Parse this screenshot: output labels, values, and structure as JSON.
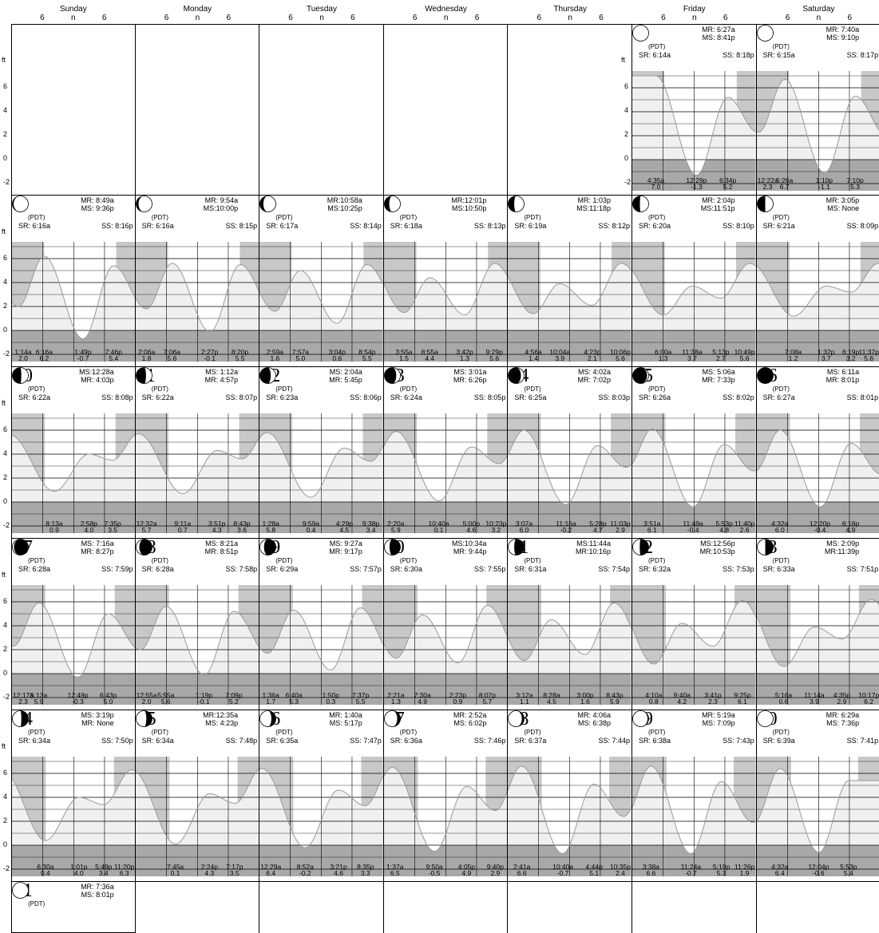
{
  "weekdays": [
    "Sunday",
    "Monday",
    "Tuesday",
    "Wednesday",
    "Thursday",
    "Friday",
    "Saturday"
  ],
  "hour_ticks": [
    "6",
    "n",
    "6"
  ],
  "y_axis": {
    "unit": "ft",
    "ticks": [
      "6",
      "4",
      "2",
      "0",
      "-2"
    ],
    "min": -2.6,
    "max": 7.4
  },
  "colors": {
    "night": "#c8c8c8",
    "fill": "#f0f0f0",
    "curve": "#9a9a9a",
    "grid": "#000000"
  },
  "days": [
    {
      "day": "1",
      "col": 5,
      "row": 0,
      "zone": "(PDT)",
      "sr": "SR: 6:14a",
      "ss": "SS: 8:18p",
      "moon1": "MR: 6:27a",
      "moon2": "MS: 8:41p",
      "phase": 0.0,
      "tides": [
        {
          "t": "4:35a",
          "h": "7.0"
        },
        {
          "t": "12:29p",
          "h": "-1.3"
        },
        {
          "t": "6:34p",
          "h": "5.2"
        }
      ]
    },
    {
      "day": "2",
      "col": 6,
      "row": 0,
      "zone": "(PDT)",
      "sr": "SR: 6:15a",
      "ss": "SS: 8:17p",
      "moon1": "MR: 7:40a",
      "moon2": "MS: 9:10p",
      "phase": 0.02,
      "tides": [
        {
          "t": "12:22a",
          "h": "2.3"
        },
        {
          "t": "5:26a",
          "h": "6.7"
        },
        {
          "t": "1:10p",
          "h": "-1.1"
        },
        {
          "t": "7:10p",
          "h": "5.3"
        }
      ]
    },
    {
      "day": "3",
      "col": 0,
      "row": 1,
      "zone": "(PDT)",
      "sr": "SR: 6:16a",
      "ss": "SS: 8:16p",
      "moon1": "MR: 8:49a",
      "moon2": "MS: 9:36p",
      "phase": 0.08,
      "tides": [
        {
          "t": "1:14a",
          "h": "2.0"
        },
        {
          "t": "6:16a",
          "h": "6.2"
        },
        {
          "t": "1:49p",
          "h": "-0.7"
        },
        {
          "t": "7:46p",
          "h": "5.4"
        }
      ]
    },
    {
      "day": "4",
      "col": 1,
      "row": 1,
      "zone": "(PDT)",
      "sr": "SR: 6:16a",
      "ss": "SS: 8:15p",
      "moon1": "MR: 9:54a",
      "moon2": "MS:10:00p",
      "phase": 0.15,
      "tides": [
        {
          "t": "2:06a",
          "h": "1.8"
        },
        {
          "t": "7:06a",
          "h": "5.6"
        },
        {
          "t": "2:27p",
          "h": "-0.1"
        },
        {
          "t": "8:20p",
          "h": "5.5"
        }
      ]
    },
    {
      "day": "5",
      "col": 2,
      "row": 1,
      "zone": "(PDT)",
      "sr": "SR: 6:17a",
      "ss": "SS: 8:14p",
      "moon1": "MR:10:58a",
      "moon2": "MS:10:25p",
      "phase": 0.22,
      "tides": [
        {
          "t": "2:59a",
          "h": "1.6"
        },
        {
          "t": "7:57a",
          "h": "5.0"
        },
        {
          "t": "3:04p",
          "h": "0.6"
        },
        {
          "t": "8:54p",
          "h": "5.5"
        }
      ]
    },
    {
      "day": "6",
      "col": 3,
      "row": 1,
      "zone": "(PDT)",
      "sr": "SR: 6:18a",
      "ss": "SS: 8:13p",
      "moon1": "MR:12:01p",
      "moon2": "MS:10:50p",
      "phase": 0.3,
      "tides": [
        {
          "t": "3:55a",
          "h": "1.5"
        },
        {
          "t": "8:55a",
          "h": "4.4"
        },
        {
          "t": "3:42p",
          "h": "1.3"
        },
        {
          "t": "9:29p",
          "h": "5.6"
        }
      ]
    },
    {
      "day": "7",
      "col": 4,
      "row": 1,
      "zone": "(PDT)",
      "sr": "SR: 6:19a",
      "ss": "SS: 8:12p",
      "moon1": "MR: 1:03p",
      "moon2": "MS:11:18p",
      "phase": 0.38,
      "tides": [
        {
          "t": "4:56a",
          "h": "1.4"
        },
        {
          "t": "10:04a",
          "h": "3.9"
        },
        {
          "t": "4:23p",
          "h": "2.1"
        },
        {
          "t": "10:06p",
          "h": "5.6"
        }
      ]
    },
    {
      "day": "8",
      "col": 5,
      "row": 1,
      "zone": "(PDT)",
      "sr": "SR: 6:20a",
      "ss": "SS: 8:10p",
      "moon1": "MR: 2:04p",
      "moon2": "MS:11:51p",
      "phase": 0.45,
      "tides": [
        {
          "t": "6:00a",
          "h": "1.3"
        },
        {
          "t": "11:38a",
          "h": "3.7"
        },
        {
          "t": "5:13p",
          "h": "2.7"
        },
        {
          "t": "10:49p",
          "h": "5.6"
        }
      ]
    },
    {
      "day": "9",
      "col": 6,
      "row": 1,
      "zone": "(PDT)",
      "sr": "SR: 6:21a",
      "ss": "SS: 8:09p",
      "moon1": "MR: 3:05p",
      "moon2": "MS: None",
      "phase": 0.5,
      "tides": [
        {
          "t": "7:08a",
          "h": "1.2"
        },
        {
          "t": "1:32p",
          "h": "3.7"
        },
        {
          "t": "6:19p",
          "h": "3.2"
        },
        {
          "t": "11:37p",
          "h": "5.6"
        }
      ]
    },
    {
      "day": "10",
      "col": 0,
      "row": 2,
      "zone": "(PDT)",
      "sr": "SR: 6:22a",
      "ss": "SS: 8:08p",
      "moon1": "MS:12:28a",
      "moon2": "MR: 4:03p",
      "phase": 0.56,
      "tides": [
        {
          "t": "8:13a",
          "h": "0.9"
        },
        {
          "t": "2:58p",
          "h": "4.0"
        },
        {
          "t": "7:35p",
          "h": "3.5"
        }
      ]
    },
    {
      "day": "11",
      "col": 1,
      "row": 2,
      "zone": "(PDT)",
      "sr": "SR: 6:22a",
      "ss": "SS: 8:07p",
      "moon1": "MS: 1:12a",
      "moon2": "MR: 4:57p",
      "phase": 0.62,
      "tides": [
        {
          "t": "12:32a",
          "h": "5.7"
        },
        {
          "t": "9:11a",
          "h": "0.7"
        },
        {
          "t": "3:51p",
          "h": "4.3"
        },
        {
          "t": "8:43p",
          "h": "3.6"
        }
      ]
    },
    {
      "day": "12",
      "col": 2,
      "row": 2,
      "zone": "(PDT)",
      "sr": "SR: 6:23a",
      "ss": "SS: 8:06p",
      "moon1": "MS: 2:04a",
      "moon2": "MR: 5:45p",
      "phase": 0.68,
      "tides": [
        {
          "t": "1:28a",
          "h": "5.8"
        },
        {
          "t": "9:59a",
          "h": "0.4"
        },
        {
          "t": "4:29p",
          "h": "4.5"
        },
        {
          "t": "9:38p",
          "h": "3.4"
        }
      ]
    },
    {
      "day": "13",
      "col": 3,
      "row": 2,
      "zone": "(PDT)",
      "sr": "SR: 6:24a",
      "ss": "SS: 8:05p",
      "moon1": "MS: 3:01a",
      "moon2": "MR: 6:26p",
      "phase": 0.74,
      "tides": [
        {
          "t": "2:20a",
          "h": "5.9"
        },
        {
          "t": "10:40a",
          "h": "0.1"
        },
        {
          "t": "5:00p",
          "h": "4.6"
        },
        {
          "t": "10:23p",
          "h": "3.2"
        }
      ]
    },
    {
      "day": "14",
      "col": 4,
      "row": 2,
      "zone": "(PDT)",
      "sr": "SR: 6:25a",
      "ss": "SS: 8:03p",
      "moon1": "MS: 4:02a",
      "moon2": "MR: 7:02p",
      "phase": 0.8,
      "tides": [
        {
          "t": "3:07a",
          "h": "6.0"
        },
        {
          "t": "11:16a",
          "h": "-0.2"
        },
        {
          "t": "5:28p",
          "h": "4.7"
        },
        {
          "t": "11:03p",
          "h": "2.9"
        }
      ]
    },
    {
      "day": "15",
      "col": 5,
      "row": 2,
      "zone": "(PDT)",
      "sr": "SR: 6:26a",
      "ss": "SS: 8:02p",
      "moon1": "MS: 5:06a",
      "moon2": "MR: 7:33p",
      "phase": 0.9,
      "tides": [
        {
          "t": "3:51a",
          "h": "6.1"
        },
        {
          "t": "11:49a",
          "h": "-0.4"
        },
        {
          "t": "5:53p",
          "h": "4.8"
        },
        {
          "t": "11:40p",
          "h": "2.6"
        }
      ]
    },
    {
      "day": "16",
      "col": 6,
      "row": 2,
      "zone": "(PDT)",
      "sr": "SR: 6:27a",
      "ss": "SS: 8:01p",
      "moon1": "MS: 6:11a",
      "moon2": "MR: 8:01p",
      "phase": 1.0,
      "tides": [
        {
          "t": "4:32a",
          "h": "6.0"
        },
        {
          "t": "12:20p",
          "h": "-0.4"
        },
        {
          "t": "6:18p",
          "h": "4.9"
        }
      ]
    },
    {
      "day": "17",
      "col": 0,
      "row": 3,
      "zone": "(PDT)",
      "sr": "SR: 6:28a",
      "ss": "SS: 7:59p",
      "moon1": "MS: 7:16a",
      "moon2": "MR: 8:27p",
      "phase": 1.1,
      "tides": [
        {
          "t": "12:17a",
          "h": "2.3"
        },
        {
          "t": "5:13a",
          "h": "5.9"
        },
        {
          "t": "12:49p",
          "h": "-0.3"
        },
        {
          "t": "6:43p",
          "h": "5.0"
        }
      ]
    },
    {
      "day": "18",
      "col": 1,
      "row": 3,
      "zone": "(PDT)",
      "sr": "SR: 6:28a",
      "ss": "SS: 7:58p",
      "moon1": "MS: 8:21a",
      "moon2": "MR: 8:51p",
      "phase": 1.2,
      "tides": [
        {
          "t": "12:55a",
          "h": "2.0"
        },
        {
          "t": "5:55a",
          "h": "5.6"
        },
        {
          "t": "1:19p",
          "h": "-0.1"
        },
        {
          "t": "7:09p",
          "h": "5.2"
        }
      ]
    },
    {
      "day": "19",
      "col": 2,
      "row": 3,
      "zone": "(PDT)",
      "sr": "SR: 6:29a",
      "ss": "SS: 7:57p",
      "moon1": "MS: 9:27a",
      "moon2": "MR: 9:17p",
      "phase": 1.26,
      "tides": [
        {
          "t": "1:36a",
          "h": "1.7"
        },
        {
          "t": "6:40a",
          "h": "5.3"
        },
        {
          "t": "1:50p",
          "h": "0.3"
        },
        {
          "t": "7:37p",
          "h": "5.5"
        }
      ]
    },
    {
      "day": "20",
      "col": 3,
      "row": 3,
      "zone": "(PDT)",
      "sr": "SR: 6:30a",
      "ss": "SS: 7:55p",
      "moon1": "MS:10:34a",
      "moon2": "MR: 9:44p",
      "phase": 1.32,
      "tides": [
        {
          "t": "2:21a",
          "h": "1.3"
        },
        {
          "t": "7:30a",
          "h": "4.9"
        },
        {
          "t": "2:23p",
          "h": "0.9"
        },
        {
          "t": "8:07p",
          "h": "5.7"
        }
      ]
    },
    {
      "day": "21",
      "col": 4,
      "row": 3,
      "zone": "(PDT)",
      "sr": "SR: 6:31a",
      "ss": "SS: 7:54p",
      "moon1": "MS:11:44a",
      "moon2": "MR:10:16p",
      "phase": 1.38,
      "tides": [
        {
          "t": "3:12a",
          "h": "1.1"
        },
        {
          "t": "8:28a",
          "h": "4.5"
        },
        {
          "t": "3:00p",
          "h": "1.6"
        },
        {
          "t": "8:43p",
          "h": "5.9"
        }
      ]
    },
    {
      "day": "22",
      "col": 5,
      "row": 3,
      "zone": "(PDT)",
      "sr": "SR: 6:32a",
      "ss": "SS: 7:53p",
      "moon1": "MS:12:56p",
      "moon2": "MR:10:53p",
      "phase": 1.44,
      "tides": [
        {
          "t": "4:10a",
          "h": "0.8"
        },
        {
          "t": "9:40a",
          "h": "4.2"
        },
        {
          "t": "3:41p",
          "h": "2.3"
        },
        {
          "t": "9:25p",
          "h": "6.1"
        }
      ]
    },
    {
      "day": "23",
      "col": 6,
      "row": 3,
      "zone": "(PDT)",
      "sr": "SR: 6:33a",
      "ss": "SS: 7:51p",
      "moon1": "MS: 2:09p",
      "moon2": "MR:11:39p",
      "phase": 1.5,
      "tides": [
        {
          "t": "5:16a",
          "h": "0.6"
        },
        {
          "t": "11:14a",
          "h": "3.9"
        },
        {
          "t": "4:35p",
          "h": "2.9"
        },
        {
          "t": "10:17p",
          "h": "6.2"
        }
      ]
    },
    {
      "day": "24",
      "col": 0,
      "row": 4,
      "zone": "(PDT)",
      "sr": "SR: 6:34a",
      "ss": "SS: 7:50p",
      "moon1": "MS: 3:19p",
      "moon2": "MR: None",
      "phase": 1.56,
      "tides": [
        {
          "t": "6:30a",
          "h": "0.4"
        },
        {
          "t": "1:01p",
          "h": "4.0"
        },
        {
          "t": "5:49p",
          "h": "3.4"
        },
        {
          "t": "11:20p",
          "h": "6.3"
        }
      ]
    },
    {
      "day": "25",
      "col": 1,
      "row": 4,
      "zone": "(PDT)",
      "sr": "SR: 6:34a",
      "ss": "SS: 7:48p",
      "moon1": "MR:12:35a",
      "moon2": "MS: 4:23p",
      "phase": 1.64,
      "tides": [
        {
          "t": "7:45a",
          "h": "0.1"
        },
        {
          "t": "2:24p",
          "h": "4.3"
        },
        {
          "t": "7:17p",
          "h": "3.5"
        }
      ]
    },
    {
      "day": "26",
      "col": 2,
      "row": 4,
      "zone": "(PDT)",
      "sr": "SR: 6:35a",
      "ss": "SS: 7:47p",
      "moon1": "MR: 1:40a",
      "moon2": "MS: 5:17p",
      "phase": 1.72,
      "tides": [
        {
          "t": "12:29a",
          "h": "6.4"
        },
        {
          "t": "8:52a",
          "h": "-0.2"
        },
        {
          "t": "3:21p",
          "h": "4.6"
        },
        {
          "t": "8:35p",
          "h": "3.3"
        }
      ]
    },
    {
      "day": "27",
      "col": 3,
      "row": 4,
      "zone": "(PDT)",
      "sr": "SR: 6:36a",
      "ss": "SS: 7:46p",
      "moon1": "MR: 2:52a",
      "moon2": "MS: 6:02p",
      "phase": 1.8,
      "tides": [
        {
          "t": "1:37a",
          "h": "6.5"
        },
        {
          "t": "9:50a",
          "h": "-0.5"
        },
        {
          "t": "4:05p",
          "h": "4.9"
        },
        {
          "t": "9:40p",
          "h": "2.9"
        }
      ]
    },
    {
      "day": "28",
      "col": 4,
      "row": 4,
      "zone": "(PDT)",
      "sr": "SR: 6:37a",
      "ss": "SS: 7:44p",
      "moon1": "MR: 4:06a",
      "moon2": "MS: 6:38p",
      "phase": 1.86,
      "tides": [
        {
          "t": "2:41a",
          "h": "6.6"
        },
        {
          "t": "10:40a",
          "h": "-0.7"
        },
        {
          "t": "4:44p",
          "h": "5.1"
        },
        {
          "t": "10:35p",
          "h": "2.4"
        }
      ]
    },
    {
      "day": "29",
      "col": 5,
      "row": 4,
      "zone": "(PDT)",
      "sr": "SR: 6:38a",
      "ss": "SS: 7:43p",
      "moon1": "MR: 5:19a",
      "moon2": "MS: 7:09p",
      "phase": 1.93,
      "tides": [
        {
          "t": "3:38a",
          "h": "6.6"
        },
        {
          "t": "11:24a",
          "h": "-0.7"
        },
        {
          "t": "5:19p",
          "h": "5.3"
        },
        {
          "t": "11:26p",
          "h": "1.9"
        }
      ]
    },
    {
      "day": "30",
      "col": 6,
      "row": 4,
      "zone": "(PDT)",
      "sr": "SR: 6:39a",
      "ss": "SS: 7:41p",
      "moon1": "MR: 6:29a",
      "moon2": "MS: 7:36p",
      "phase": 1.98,
      "tides": [
        {
          "t": "4:32a",
          "h": "6.4"
        },
        {
          "t": "12:04p",
          "h": "-0.6"
        },
        {
          "t": "5:53p",
          "h": "5.4"
        }
      ]
    },
    {
      "day": "31",
      "col": 0,
      "row": 5,
      "zone": "(PDT)",
      "sr": "",
      "ss": "",
      "moon1": "MR: 7:36a",
      "moon2": "MS: 8:01p",
      "phase": 2.0,
      "tides": []
    }
  ]
}
